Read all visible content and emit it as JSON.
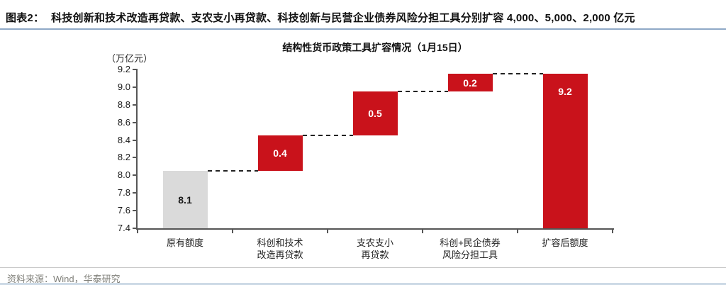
{
  "header": {
    "figure_label": "图表2：",
    "figure_title": "科技创新和技术改造再贷款、支农支小再贷款、科技创新与民营企业债券风险分担工具分别扩容 4,000、5,000、2,000 亿元"
  },
  "footer": {
    "source": "资料来源：Wind，华泰研究"
  },
  "colors": {
    "accent_red": "#c9121b",
    "neutral_gray_bar": "#dadada",
    "axis": "#555555",
    "header_underline": "#8fa9c7",
    "connector": "#222222"
  },
  "chart_data": {
    "type": "bar",
    "subtype": "waterfall",
    "title": "结构性货币政策工具扩容情况（1月15日）",
    "unit_label": "（万亿元）",
    "ylim": [
      7.4,
      9.2
    ],
    "ytick_step": 0.2,
    "yticks": [
      "9.2",
      "9.0",
      "8.8",
      "8.6",
      "8.4",
      "8.2",
      "8.0",
      "7.8",
      "7.6",
      "7.4"
    ],
    "grid": false,
    "legend": false,
    "categories": [
      [
        "原有额度"
      ],
      [
        "科创和技术",
        "改造再贷款"
      ],
      [
        "支农支小",
        "再贷款"
      ],
      [
        "科创+民企债券",
        "风险分担工具"
      ],
      [
        "扩容后额度"
      ]
    ],
    "bars": [
      {
        "name": "原有额度",
        "label": "8.1",
        "from": 7.4,
        "to": 8.05,
        "color": "#dadada",
        "label_color": "#1a1a1a",
        "label_at": "center"
      },
      {
        "name": "科创和技术改造再贷款",
        "label": "0.4",
        "from": 8.05,
        "to": 8.45,
        "color": "#c9121b",
        "label_color": "#ffffff",
        "label_at": "center"
      },
      {
        "name": "支农支小再贷款",
        "label": "0.5",
        "from": 8.45,
        "to": 8.95,
        "color": "#c9121b",
        "label_color": "#ffffff",
        "label_at": "center"
      },
      {
        "name": "科创+民企债券风险分担工具",
        "label": "0.2",
        "from": 8.95,
        "to": 9.15,
        "color": "#c9121b",
        "label_color": "#ffffff",
        "label_at": "center"
      },
      {
        "name": "扩容后额度",
        "label": "9.2",
        "from": 7.4,
        "to": 9.15,
        "color": "#c9121b",
        "label_color": "#ffffff",
        "label_at": "top"
      }
    ],
    "connector_levels": [
      8.05,
      8.45,
      8.95,
      9.15
    ]
  }
}
